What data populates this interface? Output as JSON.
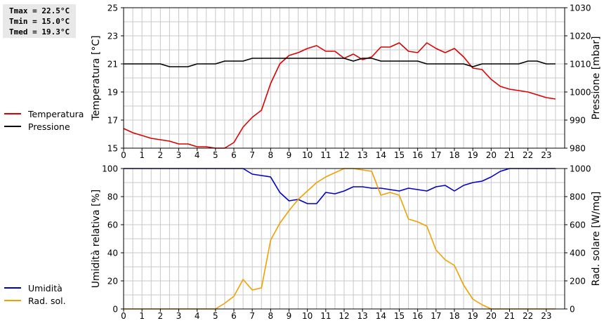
{
  "stats": {
    "tmax": "Tmax = 22.5°C",
    "tmin": "Tmin = 15.0°C",
    "tmed": "Tmed = 19.3°C"
  },
  "colors": {
    "temperature": "#dd0000",
    "pressure": "#000000",
    "humidity": "#0000cc",
    "radiation": "#f0a000",
    "grid": "#c8c8c8"
  },
  "chart_data": [
    {
      "type": "line",
      "xlim": [
        0,
        24
      ],
      "xticks": [
        "0",
        "1",
        "2",
        "3",
        "4",
        "5",
        "6",
        "7",
        "8",
        "9",
        "10",
        "11",
        "12",
        "13",
        "14",
        "15",
        "16",
        "17",
        "18",
        "19",
        "20",
        "21",
        "22",
        "23"
      ],
      "ylabel": "Temperatura [°C]",
      "ylim": [
        15,
        25
      ],
      "yticks": [
        "15",
        "17",
        "19",
        "21",
        "23",
        "25"
      ],
      "y2label": "Pressione [mbar]",
      "y2lim": [
        980,
        1030
      ],
      "y2ticks": [
        "980",
        "990",
        "1000",
        "1010",
        "1020",
        "1030"
      ],
      "grid": true,
      "legend_position": "left",
      "series": [
        {
          "name": "Temperatura",
          "axis": "left",
          "color": "#dd0000",
          "x": [
            0,
            0.5,
            1,
            1.5,
            2,
            2.5,
            3,
            3.5,
            4,
            4.5,
            5,
            5.5,
            6,
            6.5,
            7,
            7.5,
            8,
            8.5,
            9,
            9.5,
            10,
            10.5,
            11,
            11.5,
            12,
            12.5,
            13,
            13.5,
            14,
            14.5,
            15,
            15.5,
            16,
            16.5,
            17,
            17.5,
            18,
            18.5,
            19,
            19.5,
            20,
            20.5,
            21,
            21.5,
            22,
            22.5,
            23,
            23.5
          ],
          "values": [
            16.4,
            16.1,
            15.9,
            15.7,
            15.6,
            15.5,
            15.3,
            15.3,
            15.1,
            15.1,
            15.0,
            15.0,
            15.4,
            16.5,
            17.2,
            17.7,
            19.6,
            21.0,
            21.6,
            21.8,
            22.1,
            22.3,
            21.9,
            21.9,
            21.4,
            21.7,
            21.3,
            21.5,
            22.2,
            22.2,
            22.5,
            21.9,
            21.8,
            22.5,
            22.1,
            21.8,
            22.1,
            21.5,
            20.7,
            20.6,
            19.9,
            19.4,
            19.2,
            19.1,
            19.0,
            18.8,
            18.6,
            18.5
          ]
        },
        {
          "name": "Pressione",
          "axis": "right",
          "color": "#000000",
          "x": [
            0,
            0.5,
            1,
            1.5,
            2,
            2.5,
            3,
            3.5,
            4,
            4.5,
            5,
            5.5,
            6,
            6.5,
            7,
            7.5,
            8,
            8.5,
            9,
            9.5,
            10,
            10.5,
            11,
            11.5,
            12,
            12.5,
            13,
            13.5,
            14,
            14.5,
            15,
            15.5,
            16,
            16.5,
            17,
            17.5,
            18,
            18.5,
            19,
            19.5,
            20,
            20.5,
            21,
            21.5,
            22,
            22.5,
            23,
            23.5
          ],
          "values": [
            1010,
            1010,
            1010,
            1010,
            1010,
            1009,
            1009,
            1009,
            1010,
            1010,
            1010,
            1011,
            1011,
            1011,
            1012,
            1012,
            1012,
            1012,
            1012,
            1012,
            1012,
            1012,
            1012,
            1012,
            1012,
            1011,
            1012,
            1012,
            1011,
            1011,
            1011,
            1011,
            1011,
            1010,
            1010,
            1010,
            1010,
            1010,
            1009,
            1010,
            1010,
            1010,
            1010,
            1010,
            1011,
            1011,
            1010,
            1010
          ]
        }
      ]
    },
    {
      "type": "line",
      "xlim": [
        0,
        24
      ],
      "xticks": [
        "0",
        "1",
        "2",
        "3",
        "4",
        "5",
        "6",
        "7",
        "8",
        "9",
        "10",
        "11",
        "12",
        "13",
        "14",
        "15",
        "16",
        "17",
        "18",
        "19",
        "20",
        "21",
        "22",
        "23"
      ],
      "ylabel": "Umidità relativa [%]",
      "ylim": [
        0,
        100
      ],
      "yticks": [
        "0",
        "20",
        "40",
        "60",
        "80",
        "100"
      ],
      "y2label": "Rad. solare [W/mq]",
      "y2lim": [
        0,
        1000
      ],
      "y2ticks": [
        "0",
        "200",
        "400",
        "600",
        "800",
        "1000"
      ],
      "grid": true,
      "legend_position": "left",
      "series": [
        {
          "name": "Umidità",
          "axis": "left",
          "color": "#0000cc",
          "x": [
            0,
            0.5,
            1,
            1.5,
            2,
            2.5,
            3,
            3.5,
            4,
            4.5,
            5,
            5.5,
            6,
            6.5,
            7,
            7.5,
            8,
            8.5,
            9,
            9.5,
            10,
            10.5,
            11,
            11.5,
            12,
            12.5,
            13,
            13.5,
            14,
            14.5,
            15,
            15.5,
            16,
            16.5,
            17,
            17.5,
            18,
            18.5,
            19,
            19.5,
            20,
            20.5,
            21,
            21.5,
            22,
            22.5,
            23,
            23.5
          ],
          "values": [
            100,
            100,
            100,
            100,
            100,
            100,
            100,
            100,
            100,
            100,
            100,
            100,
            100,
            100,
            96,
            95,
            94,
            83,
            77,
            78,
            75,
            75,
            83,
            82,
            84,
            87,
            87,
            86,
            86,
            85,
            84,
            86,
            85,
            84,
            87,
            88,
            84,
            88,
            90,
            91,
            94,
            98,
            100,
            100,
            100,
            100,
            100,
            100
          ]
        },
        {
          "name": "Rad. sol.",
          "axis": "right",
          "color": "#f0a000",
          "x": [
            0,
            0.5,
            1,
            1.5,
            2,
            2.5,
            3,
            3.5,
            4,
            4.5,
            5,
            5.5,
            6,
            6.5,
            7,
            7.5,
            8,
            8.5,
            9,
            9.5,
            10,
            10.5,
            11,
            11.5,
            12,
            12.5,
            13,
            13.5,
            14,
            14.5,
            15,
            15.5,
            16,
            16.5,
            17,
            17.5,
            18,
            18.5,
            19,
            19.5,
            20,
            20.5,
            21,
            21.5,
            22,
            22.5,
            23,
            23.5
          ],
          "values": [
            0,
            0,
            0,
            0,
            0,
            0,
            0,
            0,
            0,
            0,
            0,
            40,
            90,
            210,
            135,
            150,
            490,
            610,
            700,
            780,
            840,
            900,
            940,
            970,
            1000,
            1000,
            990,
            980,
            810,
            830,
            810,
            640,
            620,
            590,
            420,
            350,
            310,
            170,
            70,
            30,
            0,
            0,
            0,
            0,
            0,
            0,
            0,
            0
          ]
        }
      ]
    }
  ]
}
